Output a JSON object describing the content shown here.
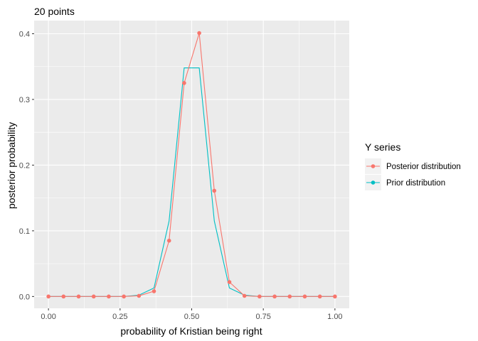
{
  "chart_data": {
    "type": "line",
    "title": "20 points",
    "xlabel": "probability of Kristian being right",
    "ylabel": "posterior probability",
    "xlim": [
      -0.05,
      1.05
    ],
    "ylim": [
      -0.018,
      0.42
    ],
    "x_ticks": [
      0.0,
      0.25,
      0.5,
      0.75,
      1.0
    ],
    "x_tick_labels": [
      "0.00",
      "0.25",
      "0.50",
      "0.75",
      "1.00"
    ],
    "y_ticks": [
      0.0,
      0.1,
      0.2,
      0.3,
      0.4
    ],
    "y_tick_labels": [
      "0.0",
      "0.1",
      "0.2",
      "0.3",
      "0.4"
    ],
    "grid": true,
    "legend": {
      "title": "Y series",
      "placement": "right"
    },
    "x": [
      0,
      0.0526,
      0.1053,
      0.1579,
      0.2105,
      0.2632,
      0.3158,
      0.3684,
      0.4211,
      0.4737,
      0.5263,
      0.5789,
      0.6316,
      0.6842,
      0.7368,
      0.7895,
      0.8421,
      0.8947,
      0.9474,
      1.0
    ],
    "series": [
      {
        "name": "Posterior distribution",
        "color": "#F8766D",
        "values": [
          0,
          0,
          0,
          0,
          0,
          0,
          0.001,
          0.008,
          0.085,
          0.325,
          0.401,
          0.161,
          0.022,
          0.001,
          0,
          0,
          0,
          0,
          0,
          0
        ]
      },
      {
        "name": "Prior distribution",
        "color": "#00BFC4",
        "values": [
          0,
          0,
          0,
          0,
          0,
          0,
          0.002,
          0.013,
          0.115,
          0.348,
          0.348,
          0.115,
          0.013,
          0.002,
          0,
          0,
          0,
          0,
          0,
          0
        ]
      }
    ]
  }
}
